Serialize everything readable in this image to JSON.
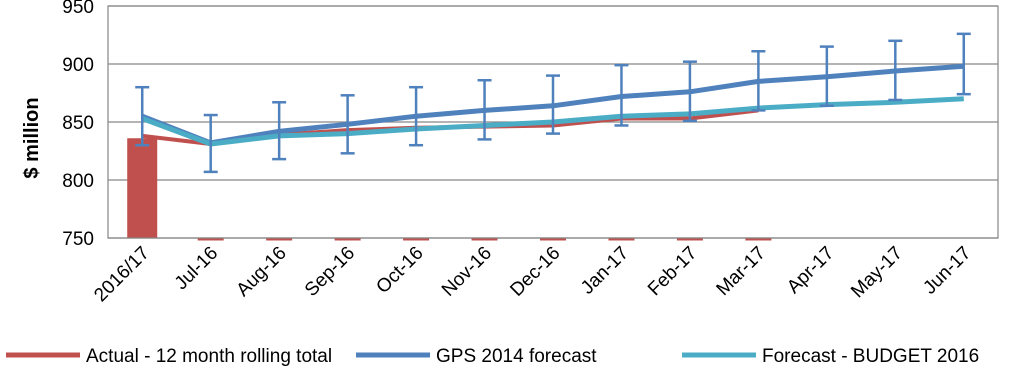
{
  "chart_data": {
    "type": "line",
    "title": "",
    "xlabel": "",
    "ylabel": "$ million",
    "ylim": [
      750,
      950
    ],
    "yticks": [
      750,
      800,
      850,
      900,
      950
    ],
    "grid": true,
    "legend_position": "bottom",
    "categories": [
      "2016/17",
      "Jul-16",
      "Aug-16",
      "Sep-16",
      "Oct-16",
      "Nov-16",
      "Dec-16",
      "Jan-17",
      "Feb-17",
      "Mar-17",
      "Apr-17",
      "May-17",
      "Jun-17"
    ],
    "series": [
      {
        "name": "Actual - 12 month rolling total",
        "kind": "bar+line",
        "color": "#c0504d",
        "bar_values": [
          836,
          null,
          null,
          null,
          null,
          null,
          null,
          null,
          null,
          null,
          null,
          null,
          null
        ],
        "line_values": [
          838,
          831,
          839,
          843,
          845,
          846,
          847,
          853,
          853,
          860,
          null,
          null,
          null
        ]
      },
      {
        "name": "GPS 2014 forecast",
        "kind": "line",
        "color": "#4f81bd",
        "values": [
          855,
          832,
          842,
          848,
          855,
          860,
          864,
          872,
          876,
          885,
          889,
          894,
          898
        ],
        "error_low": [
          830,
          807,
          818,
          823,
          830,
          835,
          840,
          847,
          851,
          860,
          864,
          869,
          874
        ],
        "error_high": [
          880,
          856,
          867,
          873,
          880,
          886,
          890,
          899,
          902,
          911,
          915,
          920,
          926
        ]
      },
      {
        "name": "Forecast - BUDGET 2016",
        "kind": "line",
        "color": "#4bacc6",
        "values": [
          853,
          831,
          838,
          840,
          844,
          847,
          850,
          855,
          857,
          862,
          865,
          867,
          870
        ]
      }
    ],
    "legend": [
      {
        "label": "Actual - 12 month rolling total",
        "color": "#c0504d"
      },
      {
        "label": "GPS 2014 forecast",
        "color": "#4f81bd"
      },
      {
        "label": "Forecast - BUDGET 2016",
        "color": "#4bacc6"
      }
    ]
  }
}
